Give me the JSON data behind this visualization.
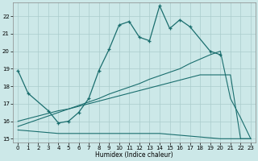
{
  "bg_color": "#cce8e8",
  "grid_color": "#aacccc",
  "line_color": "#1a6e6e",
  "xlabel": "Humidex (Indice chaleur)",
  "xlim": [
    -0.5,
    23.5
  ],
  "ylim": [
    14.8,
    22.8
  ],
  "yticks": [
    15,
    16,
    17,
    18,
    19,
    20,
    21,
    22
  ],
  "xticks": [
    0,
    1,
    2,
    3,
    4,
    5,
    6,
    7,
    8,
    9,
    10,
    11,
    12,
    13,
    14,
    15,
    16,
    17,
    18,
    19,
    20,
    21,
    22,
    23
  ],
  "series1_x": [
    0,
    1,
    3,
    4,
    5,
    6,
    7,
    8,
    9,
    10,
    11,
    12,
    13,
    14,
    15,
    16,
    17,
    19,
    20
  ],
  "series1_y": [
    18.9,
    17.6,
    16.6,
    15.9,
    16.0,
    16.5,
    17.3,
    18.9,
    20.1,
    21.5,
    21.7,
    20.8,
    20.6,
    22.6,
    21.3,
    21.8,
    21.4,
    20.0,
    19.8
  ],
  "series2_x": [
    0,
    1,
    2,
    3,
    4,
    5,
    6,
    7,
    8,
    9,
    10,
    11,
    12,
    13,
    14,
    15,
    16,
    17,
    18,
    19,
    20,
    21,
    22,
    23
  ],
  "series2_y": [
    15.5,
    15.45,
    15.4,
    15.35,
    15.3,
    15.3,
    15.3,
    15.3,
    15.3,
    15.3,
    15.3,
    15.3,
    15.3,
    15.3,
    15.3,
    15.25,
    15.2,
    15.15,
    15.1,
    15.05,
    15.0,
    15.0,
    15.0,
    15.0
  ],
  "series3_x": [
    0,
    1,
    2,
    3,
    4,
    5,
    6,
    7,
    8,
    9,
    10,
    11,
    12,
    13,
    14,
    15,
    16,
    17,
    18,
    19,
    20,
    21,
    22,
    23
  ],
  "series3_y": [
    16.0,
    16.15,
    16.3,
    16.45,
    16.6,
    16.7,
    16.85,
    17.0,
    17.15,
    17.3,
    17.45,
    17.6,
    17.75,
    17.9,
    18.05,
    18.2,
    18.35,
    18.5,
    18.65,
    18.65,
    18.65,
    18.65,
    15.0,
    15.0
  ],
  "series4_x": [
    0,
    1,
    2,
    3,
    4,
    5,
    6,
    7,
    8,
    9,
    10,
    11,
    12,
    13,
    14,
    15,
    16,
    17,
    18,
    19,
    20,
    21,
    22,
    23
  ],
  "series4_y": [
    15.7,
    15.9,
    16.1,
    16.3,
    16.5,
    16.7,
    16.9,
    17.1,
    17.3,
    17.55,
    17.75,
    17.95,
    18.15,
    18.4,
    18.6,
    18.8,
    19.0,
    19.3,
    19.55,
    19.8,
    20.0,
    17.3,
    16.2,
    15.0
  ]
}
